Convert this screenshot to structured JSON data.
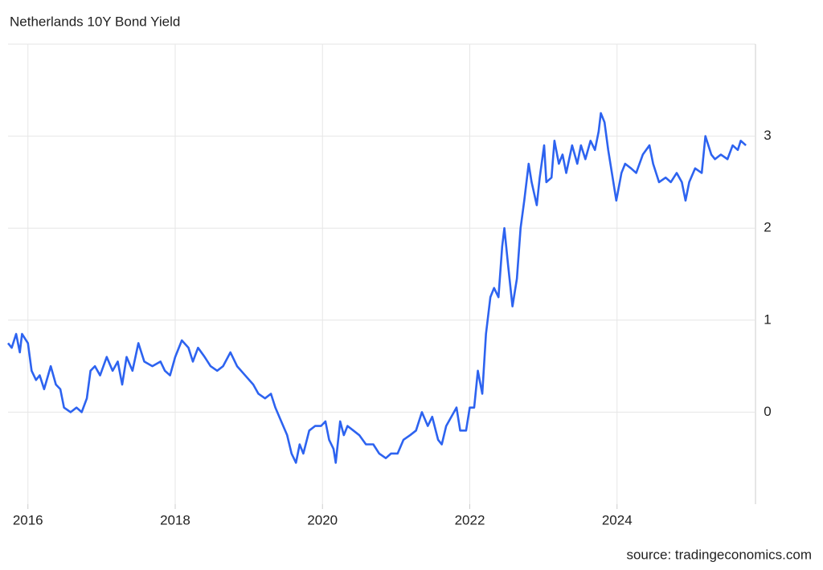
{
  "chart_data": {
    "type": "line",
    "title": "Netherlands 10Y Bond Yield",
    "source": "source: tradingeconomics.com",
    "x": [
      2015.73,
      2015.78,
      2015.84,
      2015.89,
      2015.92,
      2016.0,
      2016.05,
      2016.11,
      2016.16,
      2016.22,
      2016.31,
      2016.38,
      2016.44,
      2016.49,
      2016.58,
      2016.66,
      2016.73,
      2016.8,
      2016.85,
      2016.91,
      2016.98,
      2017.07,
      2017.15,
      2017.22,
      2017.28,
      2017.34,
      2017.42,
      2017.5,
      2017.58,
      2017.69,
      2017.8,
      2017.86,
      2017.93,
      2018.0,
      2018.09,
      2018.18,
      2018.24,
      2018.31,
      2018.4,
      2018.48,
      2018.57,
      2018.65,
      2018.75,
      2018.84,
      2018.95,
      2019.06,
      2019.13,
      2019.22,
      2019.3,
      2019.36,
      2019.44,
      2019.52,
      2019.58,
      2019.64,
      2019.69,
      2019.74,
      2019.82,
      2019.9,
      2019.98,
      2020.04,
      2020.09,
      2020.15,
      2020.18,
      2020.24,
      2020.29,
      2020.34,
      2020.42,
      2020.5,
      2020.59,
      2020.69,
      2020.77,
      2020.86,
      2020.93,
      2021.02,
      2021.1,
      2021.19,
      2021.27,
      2021.35,
      2021.43,
      2021.49,
      2021.57,
      2021.62,
      2021.68,
      2021.75,
      2021.82,
      2021.87,
      2021.95,
      2022.0,
      2022.06,
      2022.11,
      2022.17,
      2022.22,
      2022.28,
      2022.33,
      2022.39,
      2022.44,
      2022.47,
      2022.52,
      2022.58,
      2022.64,
      2022.69,
      2022.74,
      2022.8,
      2022.84,
      2022.91,
      2022.95,
      2023.01,
      2023.04,
      2023.11,
      2023.15,
      2023.21,
      2023.26,
      2023.31,
      2023.39,
      2023.46,
      2023.51,
      2023.57,
      2023.64,
      2023.7,
      2023.75,
      2023.78,
      2023.83,
      2023.88,
      2023.94,
      2023.99,
      2024.06,
      2024.11,
      2024.19,
      2024.26,
      2024.35,
      2024.44,
      2024.49,
      2024.57,
      2024.66,
      2024.73,
      2024.81,
      2024.88,
      2024.93,
      2024.98,
      2025.06,
      2025.15,
      2025.2,
      2025.28,
      2025.33,
      2025.41,
      2025.5,
      2025.57,
      2025.64,
      2025.68,
      2025.75
    ],
    "series": [
      {
        "name": "Netherlands 10Y Bond Yield",
        "color": "#2d63f0",
        "values": [
          0.75,
          0.7,
          0.85,
          0.65,
          0.85,
          0.75,
          0.45,
          0.35,
          0.4,
          0.25,
          0.5,
          0.3,
          0.25,
          0.05,
          0.0,
          0.05,
          0.0,
          0.15,
          0.45,
          0.5,
          0.4,
          0.6,
          0.45,
          0.55,
          0.3,
          0.6,
          0.45,
          0.75,
          0.55,
          0.5,
          0.55,
          0.45,
          0.4,
          0.6,
          0.78,
          0.7,
          0.55,
          0.7,
          0.6,
          0.5,
          0.45,
          0.5,
          0.65,
          0.5,
          0.4,
          0.3,
          0.2,
          0.15,
          0.2,
          0.05,
          -0.1,
          -0.25,
          -0.45,
          -0.55,
          -0.35,
          -0.45,
          -0.2,
          -0.15,
          -0.15,
          -0.1,
          -0.3,
          -0.4,
          -0.55,
          -0.1,
          -0.25,
          -0.15,
          -0.2,
          -0.25,
          -0.35,
          -0.35,
          -0.45,
          -0.5,
          -0.45,
          -0.45,
          -0.3,
          -0.25,
          -0.2,
          0.0,
          -0.15,
          -0.05,
          -0.3,
          -0.35,
          -0.15,
          -0.05,
          0.05,
          -0.2,
          -0.2,
          0.05,
          0.05,
          0.45,
          0.2,
          0.85,
          1.25,
          1.35,
          1.25,
          1.8,
          2.0,
          1.6,
          1.15,
          1.45,
          2.0,
          2.3,
          2.7,
          2.5,
          2.25,
          2.55,
          2.9,
          2.5,
          2.55,
          2.95,
          2.7,
          2.8,
          2.6,
          2.9,
          2.7,
          2.9,
          2.75,
          2.95,
          2.85,
          3.05,
          3.25,
          3.15,
          2.85,
          2.55,
          2.3,
          2.6,
          2.7,
          2.65,
          2.6,
          2.8,
          2.9,
          2.7,
          2.5,
          2.55,
          2.5,
          2.6,
          2.5,
          2.3,
          2.5,
          2.65,
          2.6,
          3.0,
          2.8,
          2.75,
          2.8,
          2.75,
          2.9,
          2.85,
          2.95,
          2.9
        ]
      }
    ],
    "xlim": [
      2015.73,
      2025.88
    ],
    "xticks": [
      2016,
      2018,
      2020,
      2022,
      2024
    ],
    "ylim": [
      -1,
      4
    ],
    "yticks": [
      0,
      1,
      2,
      3
    ],
    "grid": true
  }
}
